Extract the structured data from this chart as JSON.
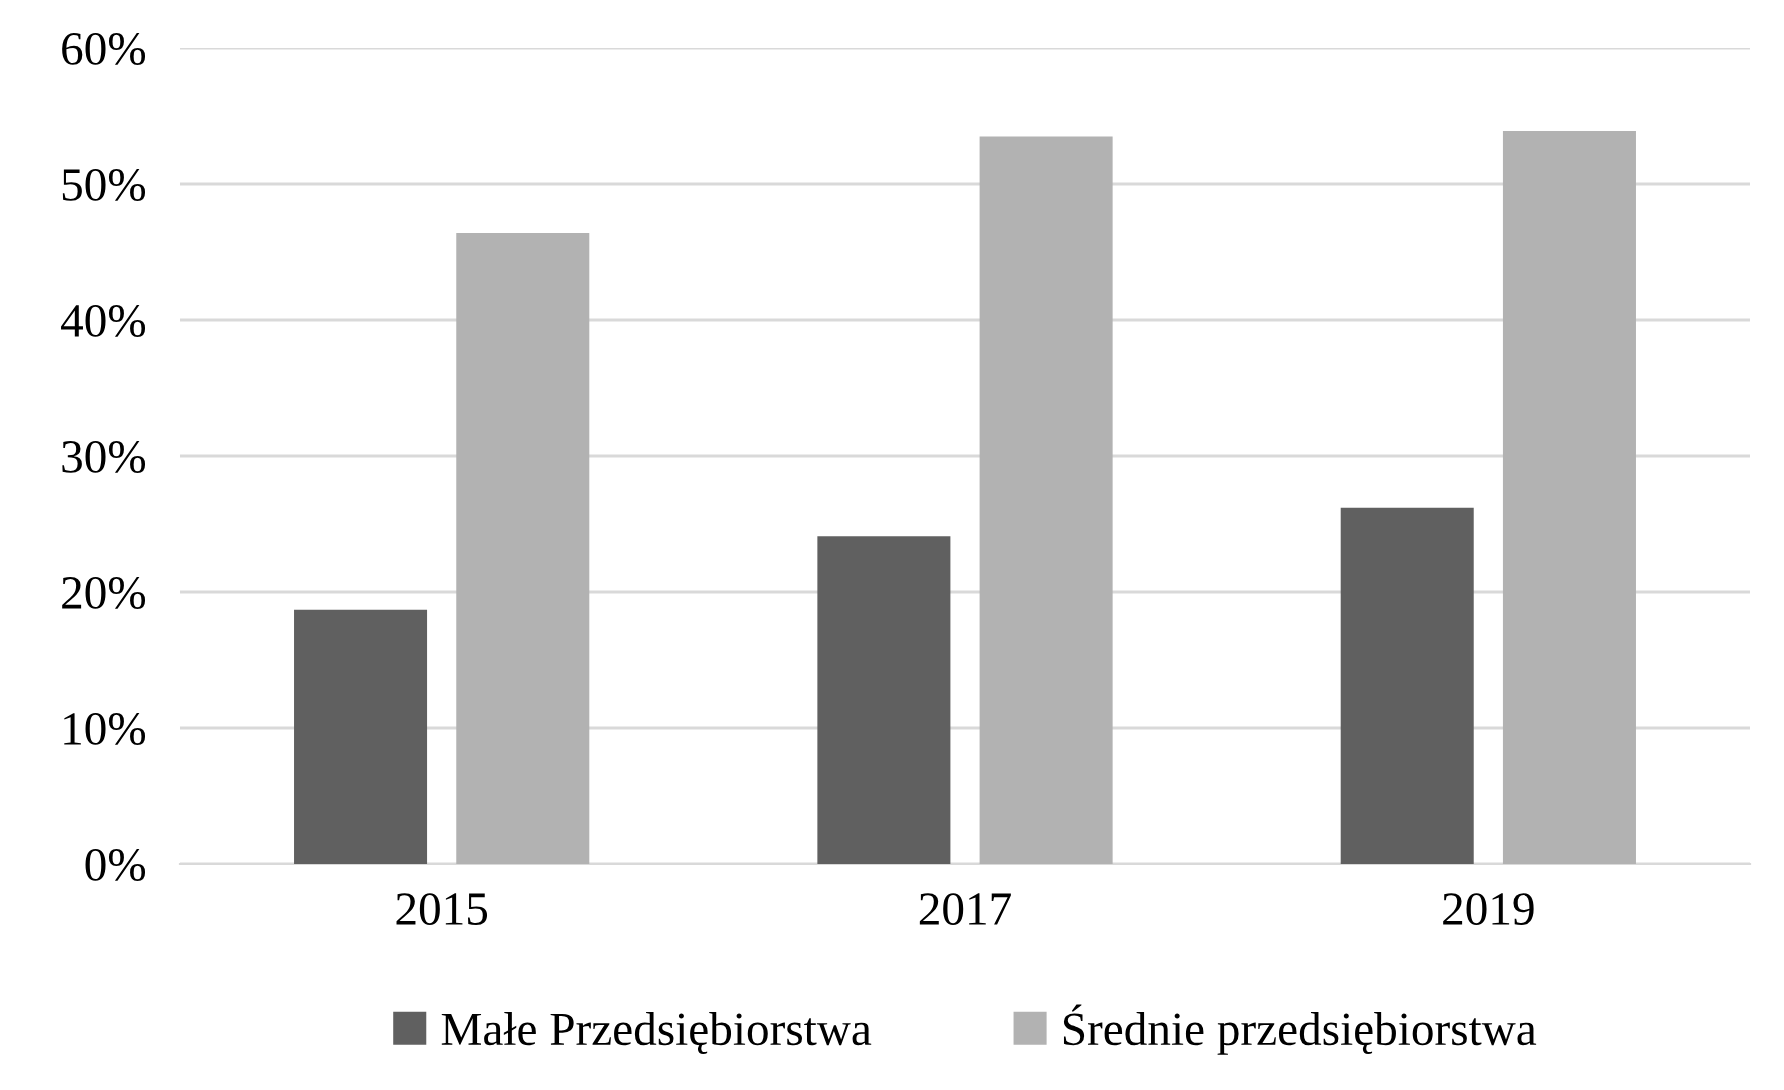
{
  "chart_data": {
    "type": "bar",
    "categories": [
      "2015",
      "2017",
      "2019"
    ],
    "series": [
      {
        "name": "Małe Przedsiębiorstwa",
        "color": "#606060",
        "values": [
          18.7,
          24.1,
          26.2
        ]
      },
      {
        "name": "Średnie przedsiębiorstwa",
        "color": "#b2b2b2",
        "values": [
          46.4,
          53.5,
          53.9
        ]
      }
    ],
    "ylim": [
      0,
      60
    ],
    "yticks": [
      {
        "value": 0,
        "label": "0%"
      },
      {
        "value": 10,
        "label": "10%"
      },
      {
        "value": 20,
        "label": "20%"
      },
      {
        "value": 30,
        "label": "30%"
      },
      {
        "value": 40,
        "label": "40%"
      },
      {
        "value": 50,
        "label": "50%"
      },
      {
        "value": 60,
        "label": "60%"
      }
    ],
    "grid": "y",
    "legend": "bottom"
  }
}
